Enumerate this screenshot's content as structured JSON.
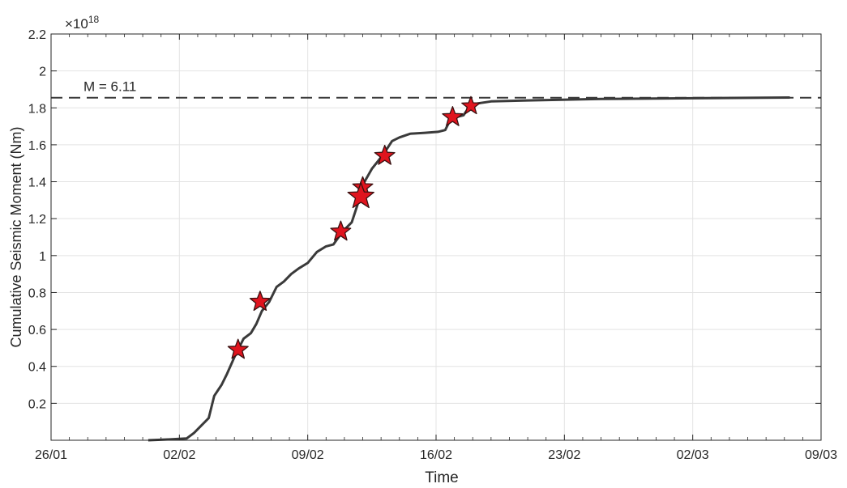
{
  "chart_data": {
    "type": "line",
    "title": "",
    "xlabel": "Time",
    "ylabel": "Cumulative Seismic Moment (Nm)",
    "y_exponent_base": "×10",
    "y_exponent_power": "18",
    "x_domain_days": [
      0,
      42
    ],
    "x_ticks": [
      {
        "day": 0,
        "label": "26/01"
      },
      {
        "day": 7,
        "label": "02/02"
      },
      {
        "day": 14,
        "label": "09/02"
      },
      {
        "day": 21,
        "label": "16/02"
      },
      {
        "day": 28,
        "label": "23/02"
      },
      {
        "day": 35,
        "label": "02/03"
      },
      {
        "day": 42,
        "label": "09/03"
      }
    ],
    "ylim": [
      0,
      2.2
    ],
    "y_ticks": [
      {
        "value": 0.2,
        "label": "0.2"
      },
      {
        "value": 0.4,
        "label": "0.4"
      },
      {
        "value": 0.6,
        "label": "0.6"
      },
      {
        "value": 0.8,
        "label": "0.8"
      },
      {
        "value": 1.0,
        "label": "1"
      },
      {
        "value": 1.2,
        "label": "1.2"
      },
      {
        "value": 1.4,
        "label": "1.4"
      },
      {
        "value": 1.6,
        "label": "1.6"
      },
      {
        "value": 1.8,
        "label": "1.8"
      },
      {
        "value": 2.0,
        "label": "2"
      },
      {
        "value": 2.2,
        "label": "2.2"
      }
    ],
    "grid": true,
    "series": [
      {
        "name": "",
        "color": "#3a3a3a",
        "points": [
          [
            5.3,
            0.0
          ],
          [
            6.5,
            0.005
          ],
          [
            7.4,
            0.01
          ],
          [
            7.8,
            0.04
          ],
          [
            8.2,
            0.08
          ],
          [
            8.6,
            0.12
          ],
          [
            8.9,
            0.24
          ],
          [
            9.3,
            0.3
          ],
          [
            9.6,
            0.36
          ],
          [
            10.0,
            0.45
          ],
          [
            10.2,
            0.49
          ],
          [
            10.5,
            0.55
          ],
          [
            10.9,
            0.58
          ],
          [
            11.2,
            0.63
          ],
          [
            11.5,
            0.7
          ],
          [
            11.9,
            0.75
          ],
          [
            12.3,
            0.83
          ],
          [
            12.7,
            0.86
          ],
          [
            13.1,
            0.9
          ],
          [
            13.5,
            0.93
          ],
          [
            14.0,
            0.96
          ],
          [
            14.5,
            1.02
          ],
          [
            15.0,
            1.05
          ],
          [
            15.4,
            1.06
          ],
          [
            15.9,
            1.13
          ],
          [
            16.4,
            1.18
          ],
          [
            16.7,
            1.27
          ],
          [
            16.9,
            1.34
          ],
          [
            17.1,
            1.4
          ],
          [
            17.5,
            1.47
          ],
          [
            17.9,
            1.52
          ],
          [
            18.2,
            1.56
          ],
          [
            18.6,
            1.62
          ],
          [
            19.0,
            1.64
          ],
          [
            19.6,
            1.66
          ],
          [
            20.4,
            1.665
          ],
          [
            21.1,
            1.67
          ],
          [
            21.5,
            1.68
          ],
          [
            21.8,
            1.74
          ],
          [
            22.1,
            1.75
          ],
          [
            22.5,
            1.76
          ],
          [
            22.7,
            1.79
          ],
          [
            23.0,
            1.82
          ],
          [
            24.0,
            1.835
          ],
          [
            26.0,
            1.84
          ],
          [
            30.0,
            1.848
          ],
          [
            35.0,
            1.852
          ],
          [
            40.3,
            1.856
          ]
        ]
      }
    ],
    "markers": [
      {
        "day": 10.2,
        "value": 0.49,
        "symbol": "star",
        "color": "#e0141e",
        "size": 1.0
      },
      {
        "day": 11.4,
        "value": 0.75,
        "symbol": "star",
        "color": "#e0141e",
        "size": 1.0
      },
      {
        "day": 15.8,
        "value": 1.13,
        "symbol": "star",
        "color": "#e0141e",
        "size": 1.0
      },
      {
        "day": 17.0,
        "value": 1.37,
        "symbol": "star",
        "color": "#e0141e",
        "size": 1.0
      },
      {
        "day": 16.9,
        "value": 1.32,
        "symbol": "star",
        "color": "#e0141e",
        "size": 1.3
      },
      {
        "day": 18.2,
        "value": 1.54,
        "symbol": "star",
        "color": "#e0141e",
        "size": 1.0
      },
      {
        "day": 21.9,
        "value": 1.75,
        "symbol": "star",
        "color": "#e0141e",
        "size": 1.0
      },
      {
        "day": 22.9,
        "value": 1.81,
        "symbol": "star",
        "color": "#e0141e",
        "size": 0.9
      }
    ],
    "reference_line": {
      "value": 1.855,
      "label": "M = 6.11",
      "style": "dashed",
      "color": "#3a3a3a"
    }
  }
}
